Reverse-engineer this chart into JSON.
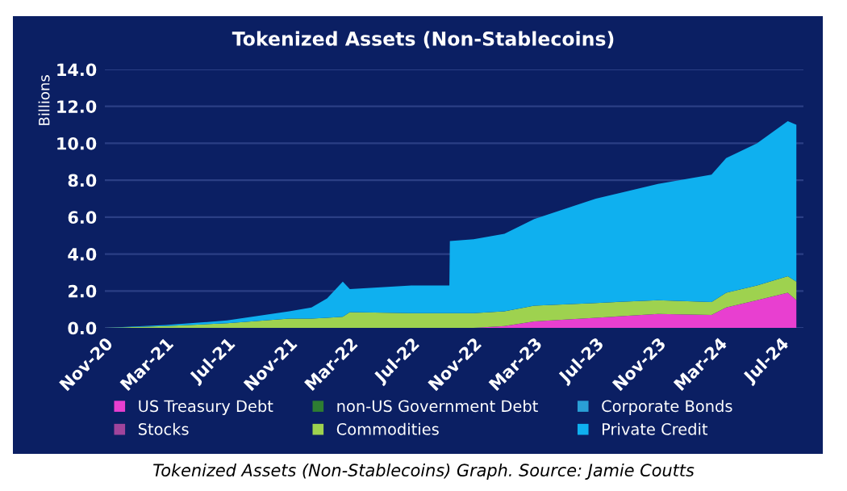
{
  "chart_data": {
    "type": "area",
    "stacked": true,
    "title": "Tokenized Assets (Non-Stablecoins)",
    "ylabel": "Billions",
    "x": [
      "2020-11-01",
      "2021-03-01",
      "2021-07-01",
      "2021-11-01",
      "2021-12-15",
      "2022-01-15",
      "2022-02-15",
      "2022-03-01",
      "2022-07-01",
      "2022-09-14",
      "2022-09-15",
      "2022-11-01",
      "2023-01-01",
      "2023-03-01",
      "2023-07-01",
      "2023-11-01",
      "2024-02-15",
      "2024-03-15",
      "2024-05-15",
      "2024-07-15",
      "2024-08-01"
    ],
    "series": [
      {
        "name": "US Treasury Debt",
        "color": "#e83fd0",
        "values": [
          0,
          0,
          0,
          0,
          0,
          0,
          0,
          0,
          0,
          0,
          0,
          0,
          0.1,
          0.35,
          0.55,
          0.75,
          0.7,
          1.1,
          1.5,
          1.9,
          1.5
        ]
      },
      {
        "name": "non-US Government Debt",
        "color": "#2e7d32",
        "values": [
          null,
          null,
          null,
          null,
          null,
          null,
          null,
          null,
          null,
          null,
          null,
          null,
          null,
          null,
          null,
          null,
          null,
          null,
          null,
          null,
          null
        ]
      },
      {
        "name": "Corporate Bonds",
        "color": "#2a9fd6",
        "values": [
          null,
          null,
          null,
          null,
          null,
          null,
          null,
          null,
          null,
          null,
          null,
          null,
          null,
          null,
          null,
          null,
          null,
          null,
          null,
          null,
          null
        ]
      },
      {
        "name": "Stocks",
        "color": "#a0449c",
        "values": [
          null,
          null,
          null,
          null,
          null,
          null,
          null,
          null,
          null,
          null,
          null,
          null,
          null,
          null,
          null,
          null,
          null,
          null,
          null,
          null,
          null
        ]
      },
      {
        "name": "Commodities",
        "color": "#9ed24f",
        "values": [
          0,
          0.1,
          0.25,
          0.5,
          0.5,
          0.55,
          0.6,
          0.85,
          0.8,
          0.8,
          0.8,
          0.8,
          0.8,
          0.85,
          0.8,
          0.75,
          0.7,
          0.8,
          0.8,
          0.9,
          1.0
        ]
      },
      {
        "name": "Private Credit",
        "color": "#0fb0ef",
        "values": [
          0,
          0.05,
          0.15,
          0.4,
          0.6,
          1.05,
          1.9,
          1.25,
          1.5,
          1.5,
          3.9,
          4.0,
          4.2,
          4.7,
          5.65,
          6.3,
          6.9,
          7.3,
          7.7,
          8.4,
          8.5
        ]
      }
    ],
    "xlim": [
      "2020-11-01",
      "2024-08-15"
    ],
    "xticks": [
      {
        "value": "2020-11-01",
        "label": "Nov-20"
      },
      {
        "value": "2021-03-01",
        "label": "Mar-21"
      },
      {
        "value": "2021-07-01",
        "label": "Jul-21"
      },
      {
        "value": "2021-11-01",
        "label": "Nov-21"
      },
      {
        "value": "2022-03-01",
        "label": "Mar-22"
      },
      {
        "value": "2022-07-01",
        "label": "Jul-22"
      },
      {
        "value": "2022-11-01",
        "label": "Nov-22"
      },
      {
        "value": "2023-03-01",
        "label": "Mar-23"
      },
      {
        "value": "2023-07-01",
        "label": "Jul-23"
      },
      {
        "value": "2023-11-01",
        "label": "Nov-23"
      },
      {
        "value": "2024-03-01",
        "label": "Mar-24"
      },
      {
        "value": "2024-07-01",
        "label": "Jul-24"
      }
    ],
    "ylim": [
      0,
      14
    ],
    "yticks": [
      {
        "value": 0,
        "label": "0.0"
      },
      {
        "value": 2,
        "label": "2.0"
      },
      {
        "value": 4,
        "label": "4.0"
      },
      {
        "value": 6,
        "label": "6.0"
      },
      {
        "value": 8,
        "label": "8.0"
      },
      {
        "value": 10,
        "label": "10.0"
      },
      {
        "value": 12,
        "label": "12.0"
      },
      {
        "value": 14,
        "label": "14.0"
      }
    ],
    "grid": "y",
    "legend": "bottom",
    "annotations": [
      "Tokenized Assets (Non-Stablecoins) Graph. Source: Jamie Coutts"
    ]
  }
}
